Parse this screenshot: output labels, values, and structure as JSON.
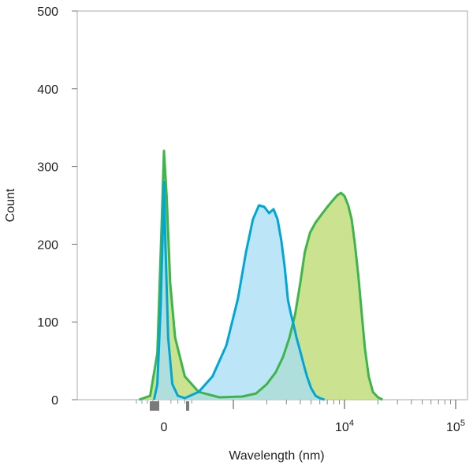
{
  "chart_data": {
    "type": "area",
    "title": "",
    "xlabel": "Wavelength (nm)",
    "ylabel": "Count",
    "ylim": [
      0,
      500
    ],
    "y_ticks": [
      0,
      100,
      200,
      300,
      400,
      500
    ],
    "x_tick_labels": [
      {
        "label": "0",
        "value": 0
      },
      {
        "label": "10",
        "sup": "4",
        "value": 10000
      },
      {
        "label": "10",
        "sup": "5",
        "value": 100000
      }
    ],
    "grid": false,
    "legend": "none",
    "series": [
      {
        "color": "#3db54a",
        "fill": "#b9d96b",
        "x": [
          -450,
          -250,
          -120,
          -40,
          0,
          40,
          90,
          160,
          300,
          500,
          800,
          1200,
          1600,
          2000,
          2400,
          2800,
          3200,
          3600,
          4000,
          4400,
          4900,
          5500,
          6200,
          7000,
          7800,
          8600,
          9300,
          10000,
          10800,
          11600,
          12400,
          13300,
          14300,
          15300,
          16500,
          18000,
          20000,
          22000
        ],
        "y": [
          0,
          5,
          60,
          230,
          320,
          260,
          150,
          80,
          30,
          10,
          3,
          4,
          8,
          20,
          35,
          55,
          80,
          110,
          150,
          190,
          215,
          228,
          238,
          248,
          256,
          263,
          266,
          262,
          250,
          232,
          200,
          160,
          110,
          65,
          30,
          10,
          3,
          0
        ]
      },
      {
        "color": "#00a6d6",
        "fill": "#a6dcf5",
        "x": [
          -180,
          -120,
          -60,
          -20,
          0,
          20,
          60,
          120,
          200,
          300,
          500,
          700,
          900,
          1100,
          1300,
          1500,
          1700,
          1900,
          2100,
          2300,
          2500,
          2700,
          2900,
          3100,
          3300,
          3500,
          3700,
          4000,
          4300,
          4600,
          5000,
          5500,
          6000,
          6600
        ],
        "y": [
          0,
          20,
          120,
          220,
          280,
          200,
          80,
          20,
          5,
          2,
          10,
          30,
          70,
          130,
          190,
          232,
          250,
          248,
          240,
          245,
          232,
          205,
          170,
          128,
          110,
          95,
          80,
          62,
          45,
          30,
          15,
          5,
          2,
          0
        ]
      }
    ]
  }
}
